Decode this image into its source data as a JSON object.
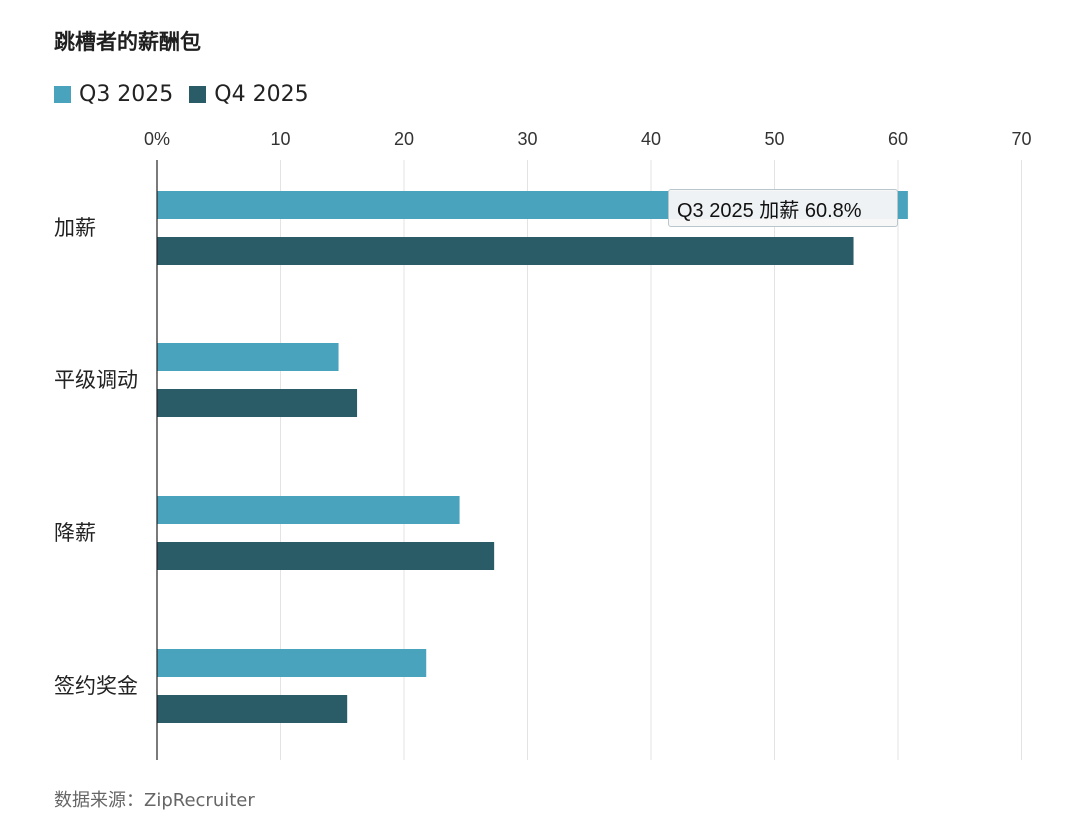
{
  "title": "跳槽者的薪酬包",
  "legend": [
    {
      "label": "Q3 2025",
      "color": "#4aa3bd"
    },
    {
      "label": "Q4 2025",
      "color": "#2a5c68"
    }
  ],
  "source": "数据来源：ZipRecruiter",
  "tooltip": "Q3 2025 加薪 60.8%",
  "chart_data": {
    "type": "bar",
    "orientation": "horizontal",
    "categories": [
      "加薪",
      "平级调动",
      "降薪",
      "签约奖金"
    ],
    "series": [
      {
        "name": "Q3 2025",
        "color": "#4aa3bd",
        "values": [
          60.8,
          14.7,
          24.5,
          21.8
        ]
      },
      {
        "name": "Q4 2025",
        "color": "#2a5c68",
        "values": [
          56.4,
          16.2,
          27.3,
          15.4
        ]
      }
    ],
    "xlim": [
      0,
      70
    ],
    "ticks": [
      "0%",
      "10",
      "20",
      "30",
      "40",
      "50",
      "60",
      "70"
    ],
    "grid": true,
    "legend_position": "top-left"
  }
}
